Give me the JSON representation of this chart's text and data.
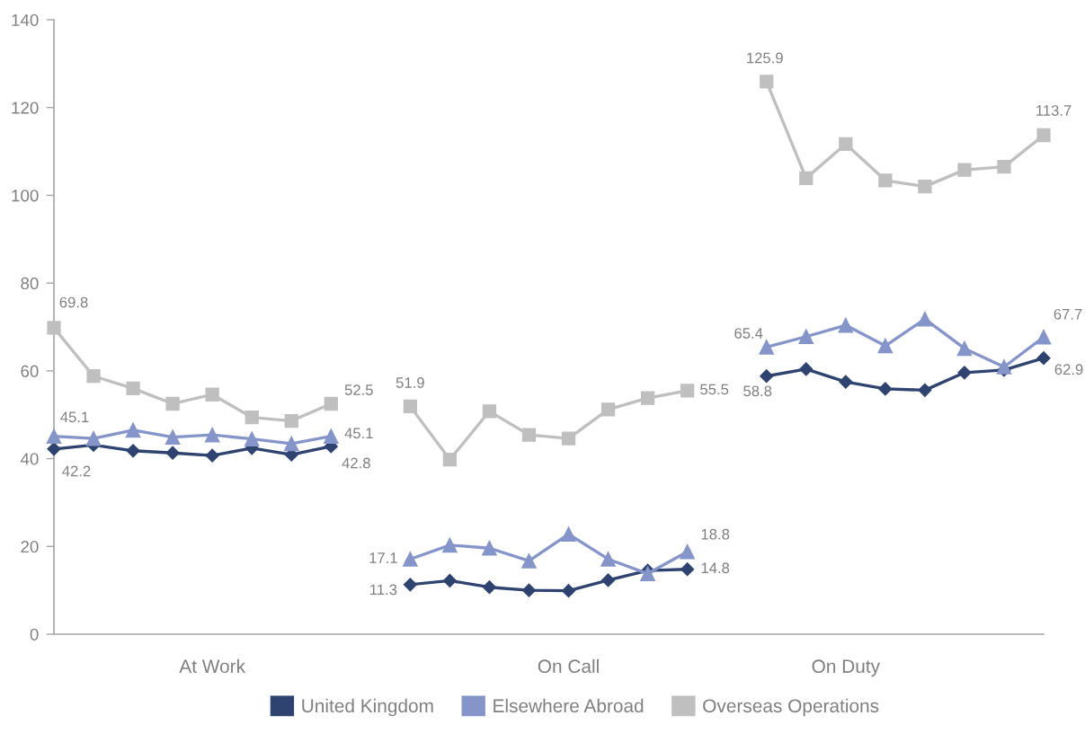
{
  "chart_data": {
    "type": "line",
    "categories": [
      null,
      null,
      null,
      null,
      "At Work",
      null,
      null,
      null,
      null,
      null,
      null,
      null,
      null,
      "On Call",
      null,
      null,
      null,
      null,
      null,
      null,
      "On Duty",
      null,
      null,
      null,
      null,
      null
    ],
    "series": [
      {
        "name": "United Kingdom",
        "color": "#2e4370",
        "marker": "diamond",
        "values": [
          42.2,
          43.1,
          41.8,
          41.3,
          40.7,
          42.4,
          40.9,
          42.8,
          null,
          11.3,
          12.2,
          10.7,
          10.0,
          9.9,
          12.3,
          14.5,
          14.8,
          null,
          58.8,
          60.4,
          57.5,
          55.9,
          55.6,
          59.6,
          60.2,
          62.9
        ],
        "value_labels": [
          "42.2",
          null,
          null,
          null,
          null,
          null,
          null,
          "42.8",
          null,
          "11.3",
          null,
          null,
          null,
          null,
          null,
          null,
          "14.8",
          null,
          "58.8",
          null,
          null,
          null,
          null,
          null,
          null,
          "62.9"
        ]
      },
      {
        "name": "Elsewhere Abroad",
        "color": "#8595c9",
        "marker": "triangle",
        "values": [
          45.1,
          44.6,
          46.5,
          44.9,
          45.4,
          44.5,
          43.4,
          45.1,
          null,
          17.1,
          20.3,
          19.6,
          16.7,
          22.8,
          17.1,
          13.8,
          18.8,
          null,
          65.4,
          67.8,
          70.4,
          65.7,
          71.8,
          65.1,
          60.9,
          67.7
        ],
        "value_labels": [
          "45.1",
          null,
          null,
          null,
          null,
          null,
          null,
          "45.1",
          null,
          "17.1",
          null,
          null,
          null,
          null,
          null,
          null,
          "18.8",
          null,
          "65.4",
          null,
          null,
          null,
          null,
          null,
          null,
          "67.7"
        ]
      },
      {
        "name": "Overseas Operations",
        "color": "#bfbfbf",
        "marker": "square",
        "values": [
          69.8,
          58.8,
          56.0,
          52.5,
          54.6,
          49.4,
          48.6,
          52.5,
          null,
          51.9,
          39.8,
          50.8,
          45.4,
          44.6,
          51.2,
          53.8,
          55.5,
          null,
          125.9,
          103.9,
          111.7,
          103.4,
          102.0,
          105.8,
          106.5,
          113.7
        ],
        "value_labels": [
          "69.8",
          null,
          null,
          null,
          null,
          null,
          null,
          "52.5",
          null,
          "51.9",
          null,
          null,
          null,
          null,
          null,
          null,
          "55.5",
          null,
          "125.9",
          null,
          null,
          null,
          null,
          null,
          null,
          "113.7"
        ]
      }
    ],
    "ylim": [
      0,
      140
    ],
    "yticks": [
      0,
      20,
      40,
      60,
      80,
      100,
      120,
      140
    ],
    "grid": false,
    "legend": "bottom",
    "line_style": "solid"
  }
}
